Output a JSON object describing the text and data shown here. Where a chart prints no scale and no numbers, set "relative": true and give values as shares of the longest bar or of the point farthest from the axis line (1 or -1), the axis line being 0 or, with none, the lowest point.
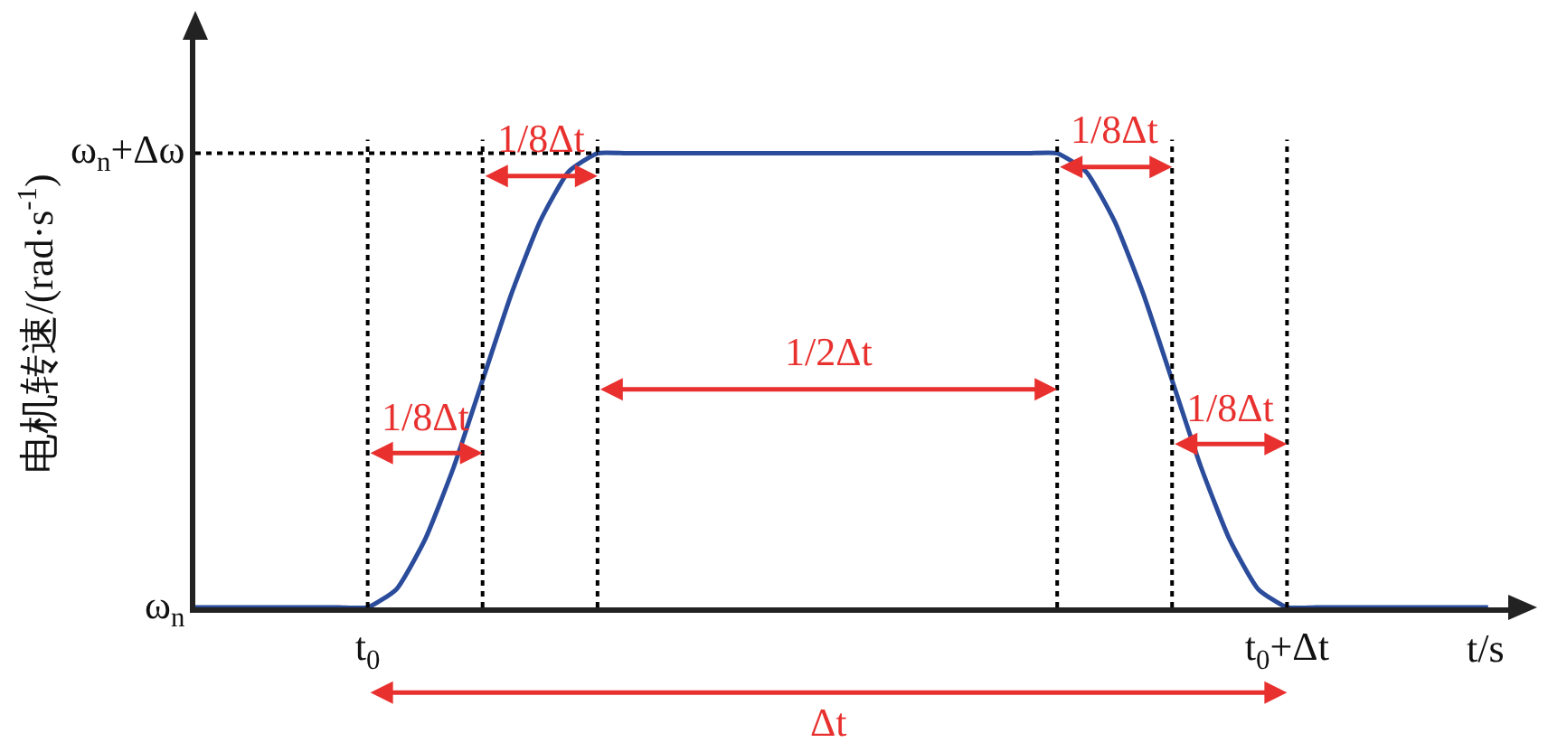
{
  "chart_data": {
    "type": "line",
    "relative": true,
    "ylabel": "电机转速/(rad·s$^{-1}$)",
    "xlabel": "t/s",
    "categories": [
      null,
      null,
      null,
      null,
      null,
      null,
      "t$_{0}$",
      null,
      null,
      null,
      null,
      null,
      null,
      null,
      null,
      null,
      null,
      null,
      null,
      null,
      null,
      null,
      null,
      null,
      null,
      null,
      null,
      null,
      null,
      null,
      null,
      null,
      null,
      null,
      null,
      null,
      null,
      null,
      "t$_{0}$+Δt",
      null,
      null,
      null,
      null,
      null,
      null,
      null
    ],
    "series": [
      {
        "color": "#2b4c9b",
        "values": [
          0,
          0,
          0,
          0,
          0,
          0,
          0,
          0.04,
          0.15,
          0.31,
          0.5,
          0.69,
          0.85,
          0.96,
          1,
          1,
          1,
          1,
          1,
          1,
          1,
          1,
          1,
          1,
          1,
          1,
          1,
          1,
          1,
          1,
          1,
          0.96,
          0.85,
          0.69,
          0.5,
          0.31,
          0.15,
          0.04,
          0,
          0,
          0,
          0,
          0,
          0,
          0,
          0
        ]
      }
    ],
    "ref_lines": [
      {
        "axis": "y",
        "value": 1,
        "line_style": "dotted",
        "color": "#000000"
      }
    ],
    "annotations": [
      "ω$_{n}$",
      "ω$_{n}$+Δω",
      "1/8Δt",
      "1/8Δt",
      "1/2Δt",
      "1/8Δt",
      "1/8Δt",
      "Δt"
    ],
    "grid": "x",
    "marker": "none",
    "line_style": "solid"
  }
}
